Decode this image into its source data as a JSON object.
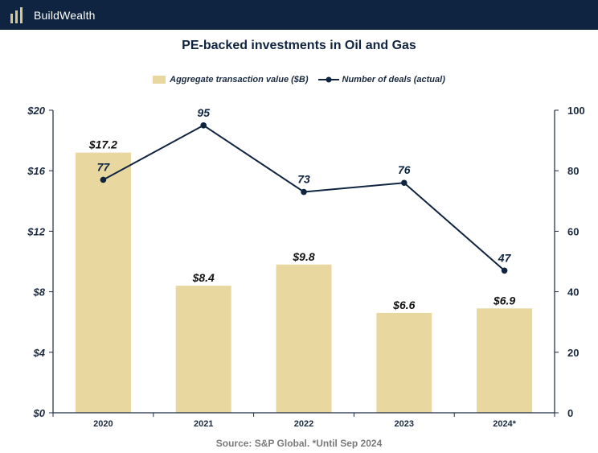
{
  "brand": {
    "name": "BuildWealth",
    "logo_icon": "bars-logo-icon",
    "bar_color": "#0f2440"
  },
  "colors": {
    "bar": "#e8d8a0",
    "line": "#0f2440",
    "axis": "#1a2a40"
  },
  "source": "Source: S&P Global. *Until Sep 2024",
  "chart_data": {
    "type": "bar",
    "title": "PE-backed investments in Oil and Gas",
    "categories": [
      "2020",
      "2021",
      "2022",
      "2023",
      "2024*"
    ],
    "series": [
      {
        "name": "Aggregate transaction value ($B)",
        "type": "bar",
        "axis": "left",
        "values": [
          17.2,
          8.4,
          9.8,
          6.6,
          6.9
        ],
        "labels": [
          "$17.2",
          "$8.4",
          "$9.8",
          "$6.6",
          "$6.9"
        ]
      },
      {
        "name": "Number of deals (actual)",
        "type": "line",
        "axis": "right",
        "values": [
          77,
          95,
          73,
          76,
          47
        ],
        "labels": [
          "77",
          "95",
          "73",
          "76",
          "47"
        ]
      }
    ],
    "y_left": {
      "min": 0,
      "max": 20,
      "ticks": [
        "$0",
        "$4",
        "$8",
        "$12",
        "$16",
        "$20"
      ]
    },
    "y_right": {
      "min": 0,
      "max": 100,
      "ticks": [
        "0",
        "20",
        "40",
        "60",
        "80",
        "100"
      ]
    },
    "grid": false,
    "legend_position": "top-center"
  }
}
